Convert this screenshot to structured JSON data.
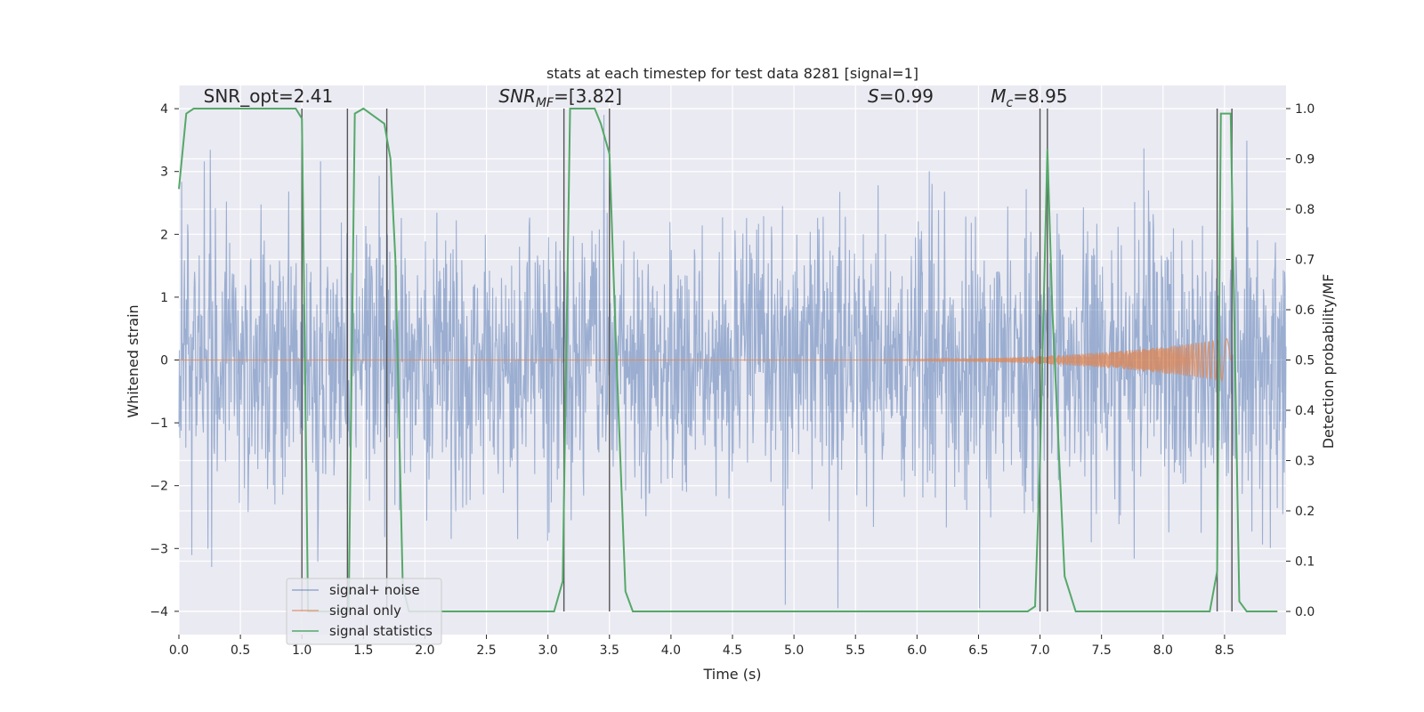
{
  "chart_data": {
    "type": "line",
    "title": "stats at each timestep for test data 8281 [signal=1]",
    "xlabel": "Time (s)",
    "ylabel": "Whitened strain",
    "y2label": "Detection probability/MF",
    "xlim": [
      0.0,
      9.0
    ],
    "ylim": [
      -4.37,
      4.37
    ],
    "y2lim": [
      -0.046,
      1.046
    ],
    "xticks": [
      "0.0",
      "0.5",
      "1.0",
      "1.5",
      "2.0",
      "2.5",
      "3.0",
      "3.5",
      "4.0",
      "4.5",
      "5.0",
      "5.5",
      "6.0",
      "6.5",
      "7.0",
      "7.5",
      "8.0",
      "8.5"
    ],
    "yticks": [
      "4",
      "3",
      "2",
      "1",
      "0",
      "−1",
      "−2",
      "−3",
      "−4"
    ],
    "y2ticks": [
      "1.0",
      "0.9",
      "0.8",
      "0.7",
      "0.6",
      "0.5",
      "0.4",
      "0.3",
      "0.2",
      "0.1",
      "0.0"
    ],
    "grid": true,
    "legend_position": "lower-left",
    "annotations": [
      {
        "label": "SNR_opt=2.41",
        "x": 0.2,
        "y": 4.1
      },
      {
        "label": "SNR_MF=[3.82]",
        "x": 2.6,
        "y": 4.1
      },
      {
        "label": "S=0.99",
        "x": 5.6,
        "y": 4.1
      },
      {
        "label": "M_c=8.95",
        "x": 6.6,
        "y": 4.1
      }
    ],
    "vertical_lines": [
      1.0,
      1.37,
      1.69,
      3.13,
      3.5,
      7.0,
      7.06,
      8.44,
      8.56
    ],
    "series": [
      {
        "name": "signal+ noise",
        "color": "#4c72b0",
        "axis": "left",
        "style": "noise",
        "duration": 9.0,
        "amplitude_sigma": 1.0,
        "typical_extreme": 3.0
      },
      {
        "name": "signal only",
        "color": "#dd8452",
        "axis": "left",
        "style": "chirp",
        "start": 5.0,
        "end": 8.55,
        "peak_amplitude": 0.35
      },
      {
        "name": "signal statistics",
        "color": "#55a868",
        "axis": "right",
        "style": "line",
        "x": [
          0.0,
          0.06,
          0.12,
          0.95,
          1.0,
          1.05,
          1.38,
          1.43,
          1.5,
          1.67,
          1.72,
          1.76,
          1.82,
          1.87,
          3.05,
          3.12,
          3.18,
          3.23,
          3.38,
          3.43,
          3.5,
          3.55,
          3.63,
          3.69,
          6.9,
          6.96,
          7.0,
          7.06,
          7.1,
          7.2,
          7.29,
          7.35,
          8.38,
          8.44,
          8.47,
          8.55,
          8.62,
          8.68,
          8.93
        ],
        "y": [
          0.84,
          0.99,
          1.0,
          1.0,
          0.98,
          0.0,
          0.0,
          0.99,
          1.0,
          0.97,
          0.9,
          0.7,
          0.05,
          0.0,
          0.0,
          0.06,
          1.0,
          1.0,
          1.0,
          0.97,
          0.91,
          0.55,
          0.04,
          0.0,
          0.0,
          0.01,
          0.3,
          0.92,
          0.6,
          0.07,
          0.0,
          0.0,
          0.0,
          0.08,
          0.99,
          0.99,
          0.02,
          0.0,
          0.0
        ]
      }
    ]
  }
}
